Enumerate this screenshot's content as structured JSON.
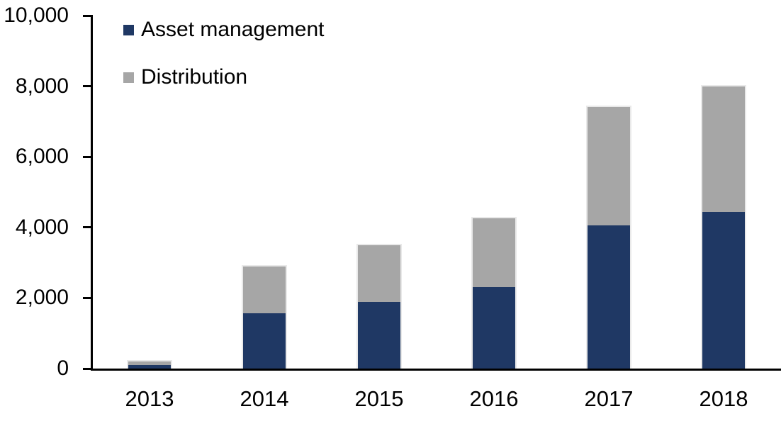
{
  "chart_data": {
    "type": "bar",
    "stacked": true,
    "title": "",
    "xlabel": "",
    "ylabel": "",
    "categories": [
      "2013",
      "2014",
      "2015",
      "2016",
      "2017",
      "2018"
    ],
    "series": [
      {
        "name": "Asset management",
        "color": "#1F3864",
        "values": [
          110,
          1570,
          1890,
          2300,
          4050,
          4430
        ]
      },
      {
        "name": "Distribution",
        "color": "#A6A6A6",
        "values": [
          90,
          1330,
          1610,
          1950,
          3350,
          3570
        ]
      }
    ],
    "totals": [
      200,
      2900,
      3500,
      4250,
      7400,
      8000
    ],
    "ylim": [
      0,
      10000
    ],
    "yticks": {
      "values": [
        0,
        2000,
        4000,
        6000,
        8000,
        10000
      ],
      "labels": [
        "0",
        "2,000",
        "4,000",
        "6,000",
        "8,000",
        "10,000"
      ]
    },
    "grid": false,
    "legend_position": "top-left-inside",
    "colors": {
      "axis": "#000000",
      "text": "#000000",
      "bar_edge": "#E9E9E9",
      "background": "#FFFFFF"
    }
  }
}
